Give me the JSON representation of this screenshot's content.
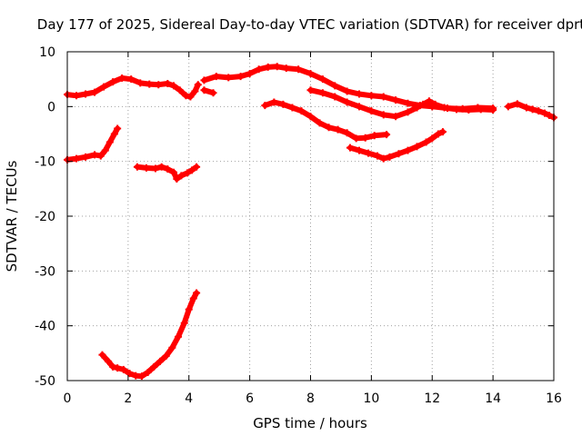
{
  "chart_data": {
    "type": "scatter",
    "title": "Day 177 of 2025, Sidereal Day-to-day VTEC variation (SDTVAR) for receiver dprt",
    "xlabel": "GPS time / hours",
    "ylabel": "SDTVAR / TECUs",
    "xlim": [
      0,
      16
    ],
    "ylim": [
      -50,
      10
    ],
    "xticks": [
      0,
      2,
      4,
      6,
      8,
      10,
      12,
      14,
      16
    ],
    "yticks": [
      -50,
      -40,
      -30,
      -20,
      -10,
      0,
      10
    ],
    "grid": true,
    "color": "#ff0000",
    "series": [
      {
        "name": "track-1",
        "points": [
          [
            0,
            2.2
          ],
          [
            0.3,
            2.0
          ],
          [
            0.6,
            2.3
          ],
          [
            0.9,
            2.6
          ],
          [
            1.2,
            3.6
          ],
          [
            1.5,
            4.5
          ],
          [
            1.8,
            5.2
          ],
          [
            2.1,
            5.0
          ],
          [
            2.4,
            4.3
          ],
          [
            2.7,
            4.1
          ],
          [
            3.0,
            4.0
          ],
          [
            3.3,
            4.2
          ],
          [
            3.5,
            3.8
          ],
          [
            3.7,
            3.0
          ],
          [
            3.9,
            2.0
          ],
          [
            4.05,
            1.8
          ],
          [
            4.2,
            2.8
          ],
          [
            4.3,
            4.0
          ]
        ]
      },
      {
        "name": "track-2",
        "points": [
          [
            4.5,
            3.0
          ],
          [
            4.8,
            2.5
          ]
        ]
      },
      {
        "name": "track-3",
        "points": [
          [
            4.5,
            4.8
          ],
          [
            4.9,
            5.5
          ],
          [
            5.3,
            5.3
          ],
          [
            5.7,
            5.5
          ],
          [
            6.0,
            6.0
          ],
          [
            6.3,
            6.8
          ],
          [
            6.6,
            7.2
          ],
          [
            6.9,
            7.3
          ],
          [
            7.2,
            7.0
          ],
          [
            7.6,
            6.8
          ],
          [
            8.0,
            6.0
          ],
          [
            8.4,
            5.0
          ],
          [
            8.8,
            3.8
          ],
          [
            9.2,
            2.8
          ],
          [
            9.6,
            2.3
          ],
          [
            10.0,
            2.0
          ],
          [
            10.4,
            1.8
          ],
          [
            10.8,
            1.2
          ],
          [
            11.2,
            0.6
          ],
          [
            11.6,
            0.2
          ],
          [
            12.0,
            0.0
          ],
          [
            12.5,
            -0.3
          ],
          [
            13.0,
            -0.4
          ],
          [
            13.5,
            -0.2
          ],
          [
            14.0,
            -0.3
          ]
        ]
      },
      {
        "name": "track-4",
        "points": [
          [
            8.0,
            3.0
          ],
          [
            8.4,
            2.5
          ],
          [
            8.8,
            1.8
          ],
          [
            9.2,
            0.8
          ],
          [
            9.6,
            0.0
          ],
          [
            10.0,
            -0.8
          ],
          [
            10.4,
            -1.5
          ],
          [
            10.8,
            -1.8
          ],
          [
            11.2,
            -1.0
          ],
          [
            11.5,
            -0.2
          ],
          [
            11.7,
            0.4
          ],
          [
            11.9,
            1.0
          ],
          [
            12.1,
            0.4
          ],
          [
            12.4,
            -0.2
          ],
          [
            12.8,
            -0.5
          ],
          [
            13.2,
            -0.6
          ],
          [
            13.6,
            -0.5
          ],
          [
            14.0,
            -0.6
          ]
        ]
      },
      {
        "name": "track-5",
        "points": [
          [
            6.5,
            0.2
          ],
          [
            6.8,
            0.8
          ],
          [
            7.1,
            0.4
          ],
          [
            7.4,
            -0.2
          ],
          [
            7.7,
            -0.8
          ],
          [
            8.0,
            -1.8
          ],
          [
            8.3,
            -3.0
          ],
          [
            8.6,
            -3.8
          ],
          [
            8.9,
            -4.2
          ],
          [
            9.2,
            -4.8
          ],
          [
            9.5,
            -5.8
          ],
          [
            9.8,
            -5.7
          ],
          [
            10.1,
            -5.3
          ],
          [
            10.5,
            -5.1
          ]
        ]
      },
      {
        "name": "track-6",
        "points": [
          [
            9.3,
            -7.5
          ],
          [
            9.6,
            -8.0
          ],
          [
            9.9,
            -8.5
          ],
          [
            10.2,
            -9.0
          ],
          [
            10.4,
            -9.5
          ],
          [
            10.6,
            -9.2
          ],
          [
            10.9,
            -8.6
          ],
          [
            11.2,
            -8.0
          ],
          [
            11.5,
            -7.3
          ],
          [
            11.8,
            -6.5
          ],
          [
            12.0,
            -5.8
          ],
          [
            12.2,
            -5.0
          ],
          [
            12.35,
            -4.6
          ]
        ]
      },
      {
        "name": "track-7",
        "points": [
          [
            14.5,
            0.0
          ],
          [
            14.8,
            0.5
          ],
          [
            15.1,
            -0.2
          ],
          [
            15.3,
            -0.5
          ],
          [
            15.5,
            -0.8
          ],
          [
            15.7,
            -1.2
          ],
          [
            15.85,
            -1.6
          ],
          [
            16.0,
            -2.0
          ]
        ]
      },
      {
        "name": "track-8",
        "points": [
          [
            0,
            -9.7
          ],
          [
            0.3,
            -9.5
          ],
          [
            0.6,
            -9.2
          ],
          [
            0.9,
            -8.8
          ],
          [
            1.1,
            -9.0
          ],
          [
            1.25,
            -8.0
          ],
          [
            1.4,
            -6.5
          ],
          [
            1.55,
            -5.0
          ],
          [
            1.65,
            -4.0
          ]
        ]
      },
      {
        "name": "track-9",
        "points": [
          [
            2.3,
            -11.0
          ],
          [
            2.6,
            -11.2
          ],
          [
            2.9,
            -11.3
          ],
          [
            3.1,
            -11.0
          ],
          [
            3.3,
            -11.4
          ],
          [
            3.5,
            -12.0
          ],
          [
            3.6,
            -13.2
          ],
          [
            3.75,
            -12.6
          ],
          [
            3.95,
            -12.1
          ],
          [
            4.1,
            -11.6
          ],
          [
            4.25,
            -11.0
          ]
        ]
      },
      {
        "name": "track-10",
        "points": [
          [
            1.15,
            -45.3
          ],
          [
            1.35,
            -46.5
          ],
          [
            1.5,
            -47.5
          ],
          [
            1.65,
            -47.7
          ],
          [
            1.85,
            -48.0
          ],
          [
            2.05,
            -48.7
          ],
          [
            2.25,
            -49.1
          ],
          [
            2.45,
            -49.2
          ],
          [
            2.65,
            -48.5
          ],
          [
            2.85,
            -47.5
          ],
          [
            3.05,
            -46.5
          ],
          [
            3.25,
            -45.5
          ],
          [
            3.45,
            -44.0
          ],
          [
            3.65,
            -42.0
          ],
          [
            3.85,
            -39.5
          ],
          [
            4.0,
            -37.0
          ],
          [
            4.15,
            -35.0
          ],
          [
            4.25,
            -34.0
          ]
        ]
      }
    ]
  }
}
